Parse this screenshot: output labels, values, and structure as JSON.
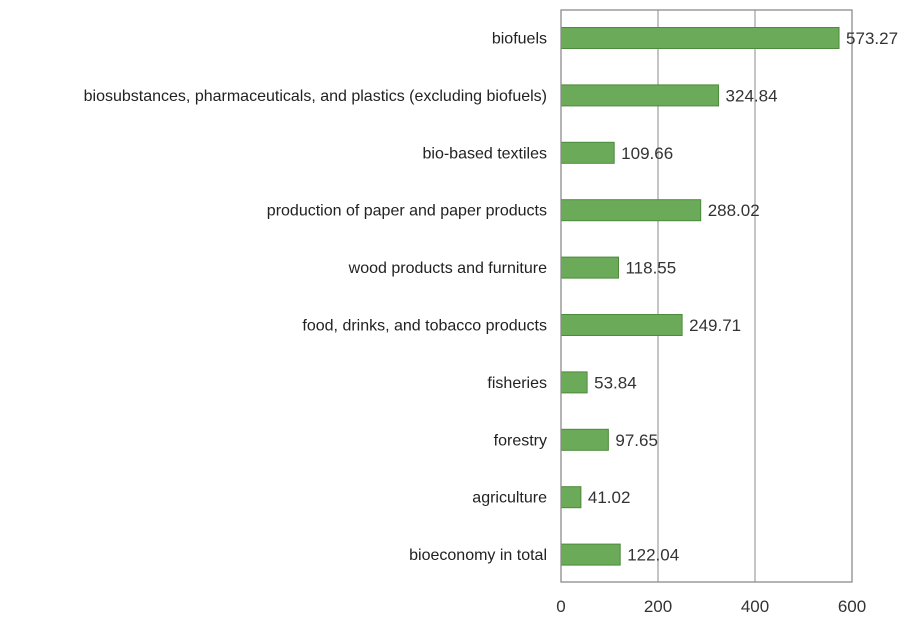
{
  "chart_data": {
    "type": "bar",
    "orientation": "horizontal",
    "title": "",
    "xlabel": "",
    "ylabel": "",
    "categories": [
      "biofuels",
      "biosubstances, pharmaceuticals, and plastics (excluding biofuels)",
      "bio-based textiles",
      "production of paper and paper products",
      "wood products and furniture",
      "food, drinks, and tobacco products",
      "fisheries",
      "forestry",
      "agriculture",
      "bioeconomy in total"
    ],
    "values": [
      573.27,
      324.84,
      109.66,
      288.02,
      118.55,
      249.71,
      53.84,
      97.65,
      41.02,
      122.04
    ],
    "value_labels": [
      "573.27",
      "324.84",
      "109.66",
      "288.02",
      "118.55",
      "249.71",
      "53.84",
      "97.65",
      "41.02",
      "122.04"
    ],
    "xlim": [
      0,
      600
    ],
    "ticks": [
      0,
      200,
      400,
      600
    ],
    "tick_labels": [
      "0",
      "200",
      "400",
      "600"
    ],
    "grid": "vertical",
    "legend": "none",
    "bar_color": "#6aaa58",
    "bar_edge_color": "#4d8a3c",
    "grid_color": "#a6a6a6"
  }
}
